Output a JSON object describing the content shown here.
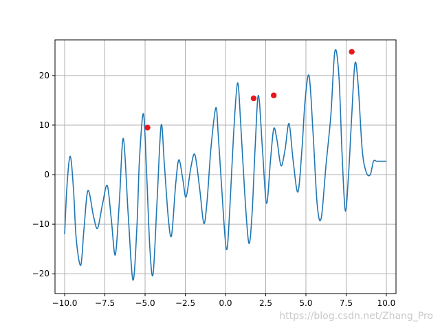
{
  "chart_data": {
    "type": "line",
    "title": "",
    "xlabel": "",
    "ylabel": "",
    "xlim": [
      -10.6,
      10.6
    ],
    "ylim": [
      -24,
      27.2
    ],
    "grid": true,
    "legend": "none",
    "x_ticks": [
      -10.0,
      -7.5,
      -5.0,
      -2.5,
      0.0,
      2.5,
      5.0,
      7.5,
      10.0
    ],
    "x_tick_labels": [
      "−10.0",
      "−7.5",
      "−5.0",
      "−2.5",
      "0.0",
      "2.5",
      "5.0",
      "7.5",
      "10.0"
    ],
    "y_ticks": [
      -20,
      -10,
      0,
      10,
      20
    ],
    "y_tick_labels": [
      "−20",
      "−10",
      "0",
      "10",
      "20"
    ],
    "series": [
      {
        "x": [
          -10.0,
          -9.85,
          -9.65,
          -9.45,
          -9.28,
          -9.0,
          -8.8,
          -8.55,
          -8.2,
          -7.95,
          -7.65,
          -7.35,
          -7.1,
          -6.85,
          -6.6,
          -6.35,
          -6.05,
          -5.75,
          -5.5,
          -5.35,
          -5.1,
          -4.9,
          -4.7,
          -4.5,
          -4.25,
          -4.0,
          -3.8,
          -3.55,
          -3.35,
          -3.1,
          -2.9,
          -2.65,
          -2.45,
          -2.15,
          -1.9,
          -1.6,
          -1.35,
          -1.15,
          -0.9,
          -0.6,
          -0.45,
          -0.25,
          0.05,
          0.25,
          0.5,
          0.75,
          0.95,
          1.2,
          1.45,
          1.65,
          1.85,
          2.05,
          2.3,
          2.55,
          2.8,
          3.0,
          3.2,
          3.45,
          3.7,
          3.95,
          4.2,
          4.5,
          4.75,
          4.95,
          5.2,
          5.45,
          5.7,
          5.95,
          6.25,
          6.55,
          6.8,
          7.05,
          7.25,
          7.45,
          7.65,
          7.85,
          8.05,
          8.25,
          8.5,
          8.75,
          9.0,
          9.2,
          9.4,
          9.65,
          9.85,
          10.0
        ],
        "y": [
          -12.0,
          -2.0,
          3.7,
          -3.0,
          -13.0,
          -18.3,
          -11.0,
          -3.2,
          -8.5,
          -10.8,
          -6.0,
          -2.2,
          -9.0,
          -16.2,
          -5.5,
          7.3,
          -8.0,
          -21.3,
          -10.0,
          3.0,
          12.3,
          0.0,
          -15.0,
          -20.0,
          -5.0,
          10.0,
          2.0,
          -9.0,
          -12.2,
          -2.0,
          3.0,
          -1.0,
          -4.5,
          1.5,
          4.0,
          -3.0,
          -9.8,
          -5.5,
          5.5,
          13.5,
          8.0,
          -2.0,
          -15.0,
          -8.0,
          8.0,
          18.5,
          10.0,
          -4.0,
          -13.8,
          -8.0,
          6.0,
          16.0,
          5.0,
          -5.8,
          3.0,
          9.3,
          7.0,
          1.8,
          5.0,
          10.3,
          3.0,
          -3.5,
          5.0,
          15.0,
          19.9,
          8.0,
          -6.0,
          -8.8,
          2.0,
          12.0,
          24.9,
          20.0,
          4.0,
          -7.3,
          0.0,
          12.0,
          22.5,
          18.0,
          5.0,
          0.5,
          0.0,
          2.7,
          2.7,
          2.7,
          2.7,
          2.7
        ]
      }
    ],
    "markers": {
      "x": [
        -4.85,
        1.75,
        3.0,
        7.85
      ],
      "y": [
        9.5,
        15.4,
        16.0,
        24.8
      ]
    },
    "line_color": "#1f77b4",
    "marker_color": "#e8171c",
    "grid_color": "#b0b0b0"
  },
  "watermark": "https://blog.csdn.net/Zhang_Pro"
}
